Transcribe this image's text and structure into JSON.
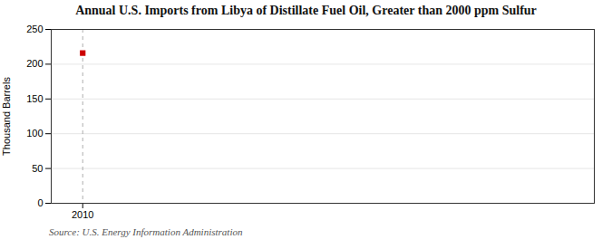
{
  "chart_data": {
    "type": "scatter",
    "title": "Annual U.S. Imports from Libya of Distillate Fuel Oil, Greater than 2000 ppm Sulfur",
    "ylabel": "Thousand Barrels",
    "source": "Source: U.S. Energy Information Administration",
    "x": [
      2010
    ],
    "values": [
      216
    ],
    "color": "#cc0000",
    "marker": "square",
    "xlim": [
      2009.2,
      2023
    ],
    "xticks": [
      2010
    ],
    "ylim": [
      0,
      250
    ],
    "yticks": [
      0,
      50,
      100,
      150,
      200,
      250
    ],
    "vline": 2010,
    "grid": true
  }
}
